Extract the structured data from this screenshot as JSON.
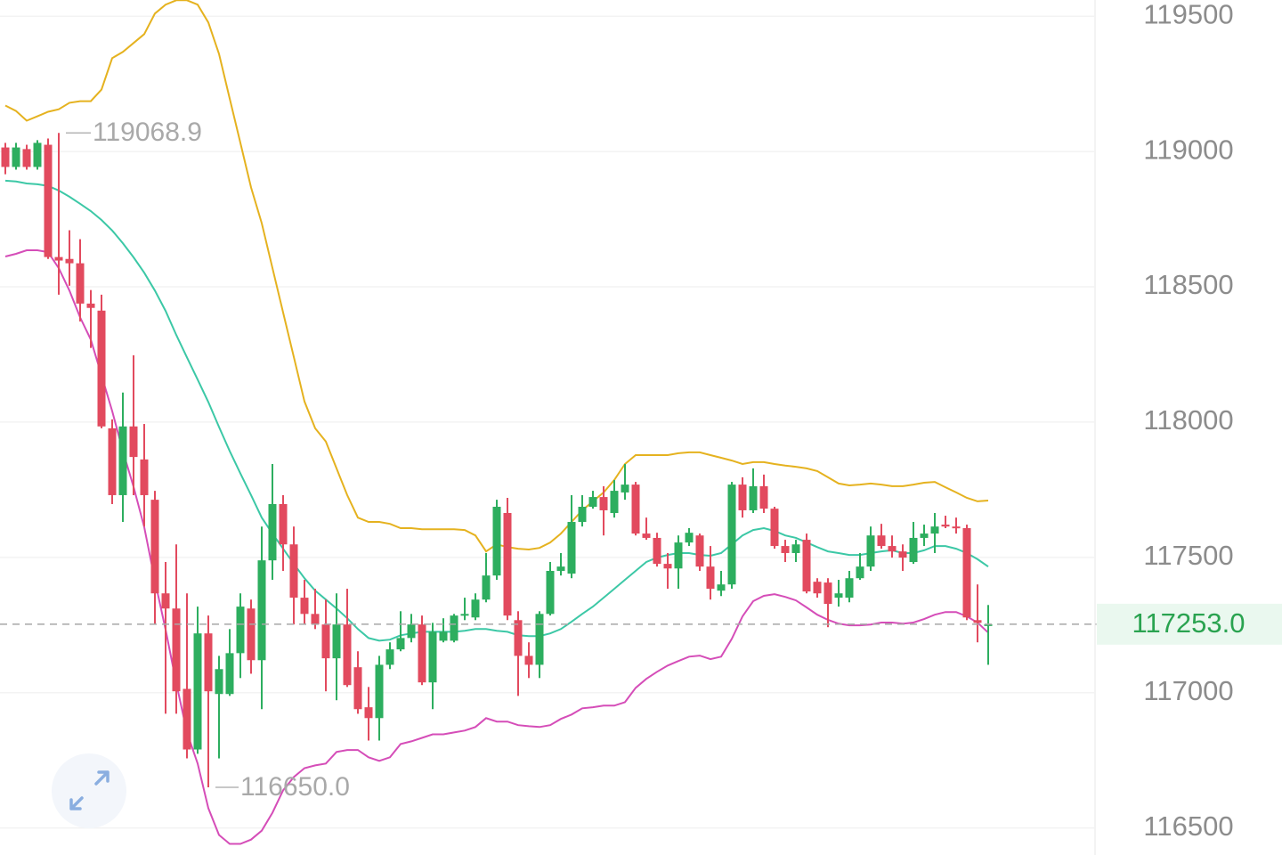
{
  "chart_data": {
    "type": "candlestick",
    "ylim": [
      116400,
      119560
    ],
    "yticks": [
      116500,
      117000,
      117500,
      118000,
      118500,
      119000,
      119500
    ],
    "grid": true,
    "up_color": "#2dae5f",
    "down_color": "#e24a5e",
    "open": [
      119015,
      118943,
      119009,
      118943,
      119025,
      118610,
      118603,
      118587,
      118438,
      118412,
      117977,
      117730,
      117984,
      117862,
      117713,
      117367,
      117311,
      117014,
      116790,
      117219,
      116995,
      116995,
      117146,
      117311,
      117120,
      117489,
      117697,
      117548,
      117351,
      117291,
      117252,
      117127,
      117252,
      117094,
      116946,
      116906,
      117103,
      117160,
      117202,
      117252,
      117038,
      117192,
      117192,
      117285,
      117278,
      117344,
      117433,
      117664,
      117268,
      117136,
      117103,
      117291,
      117450,
      117440,
      117631,
      117687,
      117723,
      117664,
      117740,
      117769,
      117588,
      117572,
      117476,
      117459,
      117555,
      117581,
      117466,
      117377,
      117400,
      117769,
      117674,
      117763,
      117680,
      117542,
      117516,
      117565,
      117410,
      117407,
      117351,
      117351,
      117423,
      117466,
      117581,
      117542,
      117522,
      117483,
      117572,
      117588,
      117621,
      117614,
      117608,
      117268,
      117248
    ],
    "high": [
      119032,
      119032,
      119025,
      119042,
      119048,
      119068.9,
      118709,
      118676,
      118488,
      118471,
      118010,
      118109,
      118247,
      117993,
      117746,
      117483,
      117548,
      117367,
      117318,
      117285,
      117136,
      117235,
      117367,
      117344,
      117614,
      117845,
      117730,
      117614,
      117417,
      117384,
      117344,
      117367,
      117384,
      117153,
      117021,
      117136,
      117186,
      117301,
      117291,
      117285,
      117258,
      117275,
      117291,
      117351,
      117367,
      117516,
      117713,
      117720,
      117301,
      117186,
      117301,
      117483,
      117516,
      117730,
      117730,
      117746,
      117763,
      117786,
      117845,
      117779,
      117647,
      117591,
      117516,
      117581,
      117608,
      117588,
      117542,
      117450,
      117779,
      117796,
      117829,
      117806,
      117687,
      117565,
      117565,
      117588,
      117423,
      117423,
      117417,
      117450,
      117516,
      117614,
      117624,
      117581,
      117548,
      117631,
      117621,
      117664,
      117654,
      117647,
      117621,
      117400,
      117324
    ],
    "low": [
      118916,
      118933,
      118933,
      118933,
      118603,
      118471,
      118504,
      118372,
      118274,
      117977,
      117697,
      117631,
      117730,
      117614,
      117252,
      116922,
      116922,
      116757,
      116774,
      116650,
      116757,
      116988,
      117054,
      117070,
      116939,
      117417,
      117450,
      117252,
      117252,
      117235,
      117005,
      116972,
      117021,
      116922,
      116823,
      116823,
      117087,
      117153,
      117186,
      117028,
      116939,
      117186,
      117186,
      117268,
      117268,
      117334,
      117417,
      117268,
      116988,
      117054,
      117054,
      117285,
      117433,
      117423,
      117614,
      117680,
      117581,
      117647,
      117713,
      117581,
      117565,
      117466,
      117384,
      117384,
      117542,
      117450,
      117344,
      117357,
      117384,
      117647,
      117664,
      117664,
      117532,
      117483,
      117483,
      117367,
      117351,
      117242,
      117318,
      117334,
      117417,
      117450,
      117532,
      117499,
      117450,
      117476,
      117542,
      117516,
      117608,
      117588,
      117268,
      117186,
      117103
    ],
    "close": [
      118943,
      119015,
      118943,
      119032,
      118610,
      118597,
      118587,
      118438,
      118422,
      117984,
      117730,
      117984,
      117871,
      117730,
      117367,
      117311,
      117005,
      116790,
      117219,
      117005,
      117087,
      117146,
      117318,
      117120,
      117489,
      117697,
      117548,
      117351,
      117291,
      117252,
      117127,
      117252,
      117028,
      116939,
      116906,
      117103,
      117160,
      117202,
      117252,
      117038,
      117225,
      117225,
      117285,
      117291,
      117344,
      117433,
      117687,
      117285,
      117136,
      117103,
      117291,
      117450,
      117466,
      117631,
      117687,
      117723,
      117674,
      117746,
      117769,
      117588,
      117572,
      117476,
      117459,
      117555,
      117591,
      117466,
      117384,
      117400,
      117769,
      117674,
      117763,
      117680,
      117542,
      117516,
      117548,
      117374,
      117367,
      117328,
      117367,
      117423,
      117466,
      117581,
      117542,
      117522,
      117499,
      117572,
      117588,
      117614,
      117614,
      117608,
      117278,
      117258,
      117253
    ],
    "overlays": [
      {
        "color": "#e5b21f",
        "values": [
          119170,
          119150,
          119114,
          119130,
          119147,
          119156,
          119180,
          119186,
          119186,
          119229,
          119345,
          119368,
          119401,
          119434,
          119510,
          119543,
          119559,
          119559,
          119543,
          119477,
          119361,
          119196,
          119032,
          118867,
          118735,
          118570,
          118405,
          118241,
          118076,
          117977,
          117928,
          117829,
          117730,
          117647,
          117631,
          117631,
          117624,
          117608,
          117608,
          117604,
          117604,
          117604,
          117604,
          117601,
          117581,
          117522,
          117548,
          117538,
          117532,
          117529,
          117535,
          117555,
          117588,
          117631,
          117674,
          117707,
          117740,
          117786,
          117845,
          117878,
          117878,
          117878,
          117878,
          117885,
          117888,
          117888,
          117878,
          117868,
          117858,
          117845,
          117852,
          117852,
          117845,
          117839,
          117835,
          117829,
          117819,
          117796,
          117773,
          117766,
          117769,
          117773,
          117769,
          117763,
          117763,
          117769,
          117776,
          117779,
          117759,
          117740,
          117720,
          117707,
          117710
        ]
      },
      {
        "color": "#3cc8a6",
        "values": [
          118892,
          118889,
          118882,
          118879,
          118873,
          118856,
          118833,
          118807,
          118780,
          118747,
          118708,
          118661,
          118609,
          118552,
          118486,
          118411,
          118322,
          118239,
          118157,
          118074,
          117982,
          117893,
          117810,
          117730,
          117647,
          117588,
          117532,
          117476,
          117423,
          117377,
          117344,
          117311,
          117275,
          117235,
          117202,
          117192,
          117196,
          117212,
          117219,
          117225,
          117225,
          117225,
          117225,
          117229,
          117235,
          117235,
          117229,
          117225,
          117212,
          117209,
          117209,
          117219,
          117235,
          117262,
          117291,
          117318,
          117351,
          117384,
          117417,
          117450,
          117483,
          117499,
          117509,
          117516,
          117516,
          117509,
          117506,
          117516,
          117548,
          117581,
          117601,
          117608,
          117598,
          117581,
          117572,
          117555,
          117538,
          117522,
          117516,
          117509,
          117509,
          117516,
          117522,
          117526,
          117516,
          117516,
          117526,
          117542,
          117542,
          117532,
          117516,
          117493,
          117466
        ]
      },
      {
        "color": "#d54db8",
        "values": [
          118612,
          118622,
          118635,
          118635,
          118628,
          118569,
          118486,
          118387,
          118305,
          118173,
          118041,
          117893,
          117761,
          117612,
          117414,
          117233,
          117035,
          116853,
          116738,
          116573,
          116474,
          116441,
          116441,
          116457,
          116490,
          116556,
          116639,
          116688,
          116721,
          116731,
          116738,
          116781,
          116788,
          116788,
          116761,
          116748,
          116761,
          116810,
          116820,
          116833,
          116846,
          116846,
          116853,
          116860,
          116873,
          116906,
          116893,
          116893,
          116880,
          116876,
          116873,
          116880,
          116903,
          116919,
          116942,
          116946,
          116952,
          116952,
          116965,
          117018,
          117051,
          117077,
          117100,
          117117,
          117133,
          117137,
          117124,
          117133,
          117199,
          117282,
          117338,
          117358,
          117364,
          117354,
          117341,
          117315,
          117288,
          117269,
          117255,
          117249,
          117249,
          117252,
          117259,
          117259,
          117255,
          117259,
          117272,
          117288,
          117298,
          117298,
          117282,
          117259,
          117222
        ]
      }
    ],
    "last_price": {
      "value": 117253,
      "label": "117253.0"
    },
    "annotations": {
      "high": 119068.9,
      "low": {
        "value": 116650,
        "label": "116650.0"
      }
    }
  }
}
